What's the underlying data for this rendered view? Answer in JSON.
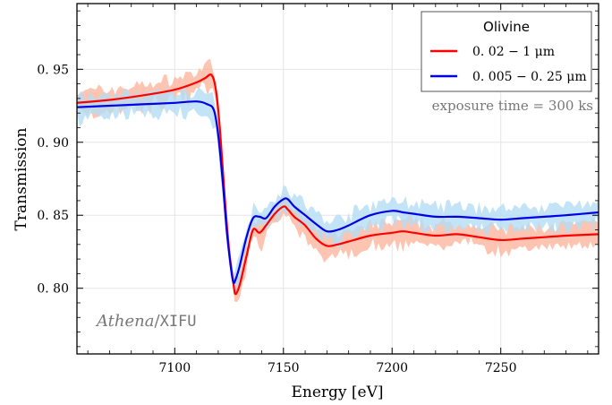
{
  "chart_data": {
    "type": "line",
    "xlabel": "Energy   [eV]",
    "ylabel": "Transmission",
    "xlim": [
      7055,
      7295
    ],
    "ylim": [
      0.755,
      0.995
    ],
    "x_ticks": [
      7100,
      7150,
      7200,
      7250
    ],
    "x_tick_labels": [
      "7100",
      "7150",
      "7200",
      "7250"
    ],
    "y_ticks": [
      0.8,
      0.85,
      0.9,
      0.95
    ],
    "y_tick_labels": [
      "0. 80",
      "0. 85",
      "0. 90",
      "0. 95"
    ],
    "grid": true,
    "legend_position": "top-right",
    "legend_title": "Olivine",
    "annotation": "exposure time = 300 ks",
    "watermark": {
      "italic_part": "Athena",
      "separator": "/",
      "mono_part": "XIFU"
    },
    "series": [
      {
        "name": "0. 02 − 1 μm",
        "color": "#ff0000",
        "band_color": "#fcb69d",
        "x": [
          7055,
          7070,
          7085,
          7100,
          7110,
          7114,
          7117,
          7119,
          7121,
          7123,
          7125,
          7127,
          7128,
          7130,
          7133,
          7136,
          7139,
          7142,
          7146,
          7150,
          7152,
          7155,
          7160,
          7165,
          7170,
          7175,
          7180,
          7190,
          7200,
          7205,
          7210,
          7220,
          7230,
          7240,
          7250,
          7260,
          7270,
          7280,
          7295
        ],
        "values": [
          0.927,
          0.929,
          0.932,
          0.936,
          0.941,
          0.944,
          0.946,
          0.935,
          0.905,
          0.862,
          0.826,
          0.803,
          0.796,
          0.803,
          0.822,
          0.84,
          0.838,
          0.843,
          0.851,
          0.856,
          0.854,
          0.849,
          0.843,
          0.834,
          0.829,
          0.83,
          0.832,
          0.836,
          0.838,
          0.839,
          0.838,
          0.836,
          0.837,
          0.835,
          0.833,
          0.834,
          0.835,
          0.836,
          0.837
        ]
      },
      {
        "name": "0. 005 − 0. 25 μm",
        "color": "#0000e6",
        "band_color": "#b4dcf5",
        "x": [
          7055,
          7070,
          7085,
          7100,
          7110,
          7115,
          7118,
          7120,
          7122,
          7124,
          7126,
          7127,
          7128,
          7130,
          7133,
          7136,
          7139,
          7142,
          7146,
          7150,
          7152,
          7155,
          7160,
          7165,
          7170,
          7175,
          7180,
          7190,
          7200,
          7205,
          7210,
          7220,
          7230,
          7240,
          7250,
          7260,
          7270,
          7280,
          7295
        ],
        "values": [
          0.924,
          0.925,
          0.926,
          0.927,
          0.928,
          0.926,
          0.922,
          0.905,
          0.874,
          0.838,
          0.812,
          0.804,
          0.806,
          0.816,
          0.835,
          0.848,
          0.849,
          0.848,
          0.856,
          0.861,
          0.861,
          0.856,
          0.85,
          0.844,
          0.839,
          0.84,
          0.843,
          0.85,
          0.853,
          0.852,
          0.851,
          0.849,
          0.849,
          0.848,
          0.847,
          0.848,
          0.849,
          0.85,
          0.852
        ]
      }
    ]
  }
}
